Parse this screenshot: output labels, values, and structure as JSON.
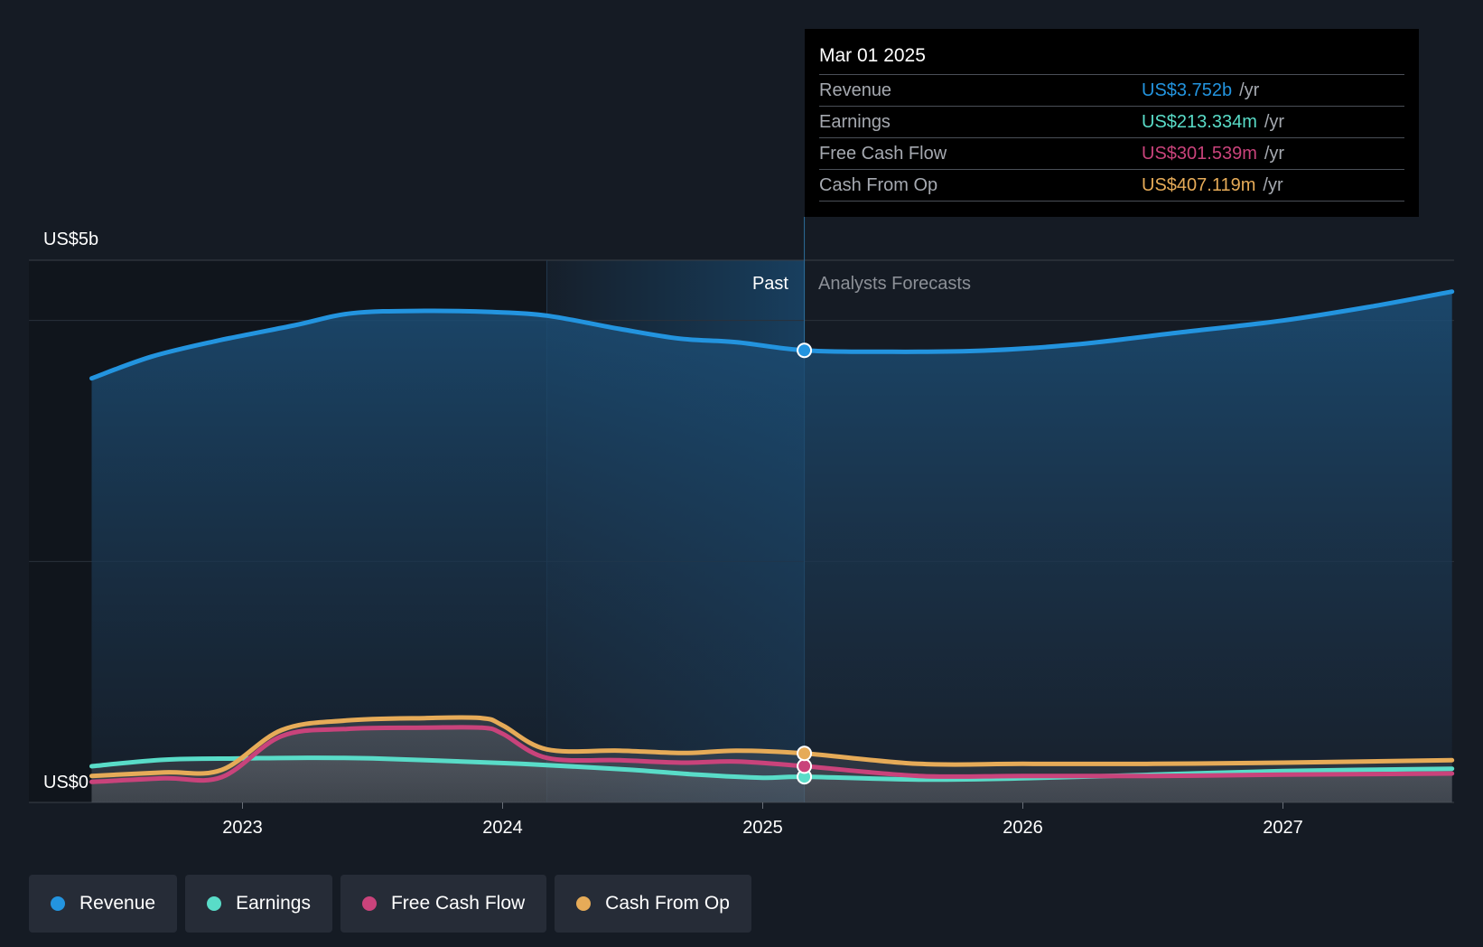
{
  "chart_data": {
    "type": "area",
    "y_axis_labels": [
      "US$5b",
      "US$0"
    ],
    "ylim": [
      0,
      4500000000
    ],
    "x_ticks": [
      {
        "label": "2023",
        "value": 2023.0
      },
      {
        "label": "2024",
        "value": 2024.0
      },
      {
        "label": "2025",
        "value": 2025.0
      },
      {
        "label": "2026",
        "value": 2026.0
      },
      {
        "label": "2027",
        "value": 2027.0
      }
    ],
    "xlim": [
      2022.2,
      2027.65
    ],
    "past_label": "Past",
    "forecast_label": "Analysts Forecasts",
    "current_x": 2025.16,
    "series": [
      {
        "name": "Revenue",
        "color": "#2394df",
        "key": "revenue",
        "points": [
          [
            2022.42,
            3520000000.0
          ],
          [
            2022.65,
            3700000000.0
          ],
          [
            2022.9,
            3830000000.0
          ],
          [
            2023.2,
            3960000000.0
          ],
          [
            2023.42,
            4060000000.0
          ],
          [
            2023.7,
            4080000000.0
          ],
          [
            2023.96,
            4070000000.0
          ],
          [
            2024.17,
            4040000000.0
          ],
          [
            2024.45,
            3930000000.0
          ],
          [
            2024.68,
            3850000000.0
          ],
          [
            2024.9,
            3820000000.0
          ],
          [
            2025.16,
            3752000000.0
          ],
          [
            2025.5,
            3740000000.0
          ],
          [
            2025.85,
            3750000000.0
          ],
          [
            2026.2,
            3800000000.0
          ],
          [
            2026.6,
            3900000000.0
          ],
          [
            2027.0,
            4000000000.0
          ],
          [
            2027.35,
            4120000000.0
          ],
          [
            2027.65,
            4240000000.0
          ]
        ]
      },
      {
        "name": "Earnings",
        "color": "#59dcc8",
        "key": "earnings",
        "points": [
          [
            2022.42,
            300000000.0
          ],
          [
            2022.7,
            355000000.0
          ],
          [
            2023.0,
            365000000.0
          ],
          [
            2023.2,
            370000000.0
          ],
          [
            2023.5,
            365000000.0
          ],
          [
            2023.96,
            330000000.0
          ],
          [
            2024.17,
            310000000.0
          ],
          [
            2024.5,
            270000000.0
          ],
          [
            2024.75,
            230000000.0
          ],
          [
            2025.0,
            205000000.0
          ],
          [
            2025.16,
            213000000.0
          ],
          [
            2025.6,
            190000000.0
          ],
          [
            2026.0,
            200000000.0
          ],
          [
            2026.5,
            230000000.0
          ],
          [
            2027.0,
            260000000.0
          ],
          [
            2027.65,
            280000000.0
          ]
        ]
      },
      {
        "name": "Free Cash Flow",
        "color": "#c9437b",
        "key": "fcf",
        "points": [
          [
            2022.42,
            170000000.0
          ],
          [
            2022.7,
            200000000.0
          ],
          [
            2022.92,
            210000000.0
          ],
          [
            2023.15,
            550000000.0
          ],
          [
            2023.4,
            610000000.0
          ],
          [
            2023.7,
            620000000.0
          ],
          [
            2023.92,
            620000000.0
          ],
          [
            2024.0,
            570000000.0
          ],
          [
            2024.17,
            370000000.0
          ],
          [
            2024.45,
            350000000.0
          ],
          [
            2024.7,
            330000000.0
          ],
          [
            2024.9,
            340000000.0
          ],
          [
            2025.16,
            301000000.0
          ],
          [
            2025.6,
            220000000.0
          ],
          [
            2026.0,
            220000000.0
          ],
          [
            2026.5,
            220000000.0
          ],
          [
            2027.0,
            230000000.0
          ],
          [
            2027.65,
            240000000.0
          ]
        ]
      },
      {
        "name": "Cash From Op",
        "color": "#e6ab58",
        "key": "cfo",
        "points": [
          [
            2022.42,
            220000000.0
          ],
          [
            2022.7,
            250000000.0
          ],
          [
            2022.92,
            270000000.0
          ],
          [
            2023.15,
            600000000.0
          ],
          [
            2023.4,
            680000000.0
          ],
          [
            2023.7,
            700000000.0
          ],
          [
            2023.92,
            700000000.0
          ],
          [
            2024.0,
            640000000.0
          ],
          [
            2024.17,
            440000000.0
          ],
          [
            2024.45,
            430000000.0
          ],
          [
            2024.7,
            410000000.0
          ],
          [
            2024.9,
            430000000.0
          ],
          [
            2025.16,
            407000000.0
          ],
          [
            2025.6,
            320000000.0
          ],
          [
            2026.0,
            320000000.0
          ],
          [
            2026.5,
            320000000.0
          ],
          [
            2027.0,
            330000000.0
          ],
          [
            2027.65,
            350000000.0
          ]
        ]
      }
    ],
    "legend": "bottom"
  },
  "tooltip": {
    "date": "Mar 01 2025",
    "unit": "/yr",
    "rows": [
      {
        "label": "Revenue",
        "value": "US$3.752b",
        "color": "#2394df"
      },
      {
        "label": "Earnings",
        "value": "US$213.334m",
        "color": "#59dcc8"
      },
      {
        "label": "Free Cash Flow",
        "value": "US$301.539m",
        "color": "#c9437b"
      },
      {
        "label": "Cash From Op",
        "value": "US$407.119m",
        "color": "#e6ab58"
      }
    ]
  },
  "legend": [
    {
      "label": "Revenue",
      "color": "#2394df"
    },
    {
      "label": "Earnings",
      "color": "#59dcc8"
    },
    {
      "label": "Free Cash Flow",
      "color": "#c9437b"
    },
    {
      "label": "Cash From Op",
      "color": "#e6ab58"
    }
  ]
}
